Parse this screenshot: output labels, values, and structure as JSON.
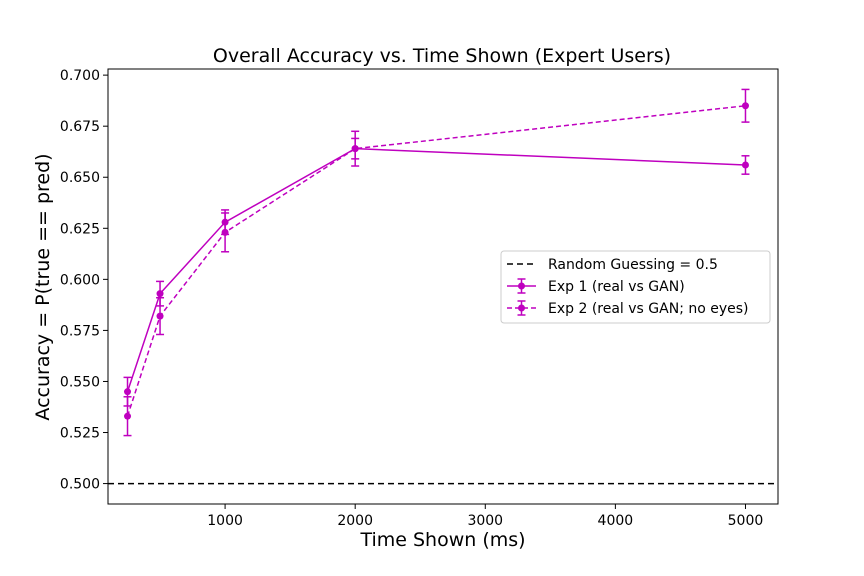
{
  "chart_data": {
    "type": "line",
    "title": "Overall Accuracy vs. Time Shown (Expert Users)",
    "xlabel": "Time Shown (ms)",
    "ylabel": "Accuracy = P(true == pred)",
    "xlim": [
      100,
      5250
    ],
    "ylim": [
      0.49,
      0.703
    ],
    "xticks": [
      1000,
      2000,
      3000,
      4000,
      5000
    ],
    "yticks": [
      0.5,
      0.525,
      0.55,
      0.575,
      0.6,
      0.625,
      0.65,
      0.675,
      0.7
    ],
    "grid": false,
    "legend_position": "center-right",
    "reference_line": {
      "label": "Random Guessing = 0.5",
      "y": 0.5,
      "color": "#000000",
      "style": "dashed"
    },
    "series": [
      {
        "name": "Exp 1 (real vs GAN)",
        "color": "#bf00bf",
        "style": "solid",
        "x": [
          250,
          500,
          1000,
          2000,
          5000
        ],
        "y": [
          0.545,
          0.593,
          0.628,
          0.664,
          0.656
        ],
        "err": [
          0.007,
          0.006,
          0.006,
          0.005,
          0.0045
        ]
      },
      {
        "name": "Exp 2 (real vs GAN; no eyes)",
        "color": "#bf00bf",
        "style": "dashed",
        "x": [
          250,
          500,
          1000,
          2000,
          5000
        ],
        "y": [
          0.533,
          0.582,
          0.623,
          0.664,
          0.685
        ],
        "err": [
          0.0095,
          0.009,
          0.0095,
          0.0085,
          0.008
        ]
      }
    ]
  }
}
